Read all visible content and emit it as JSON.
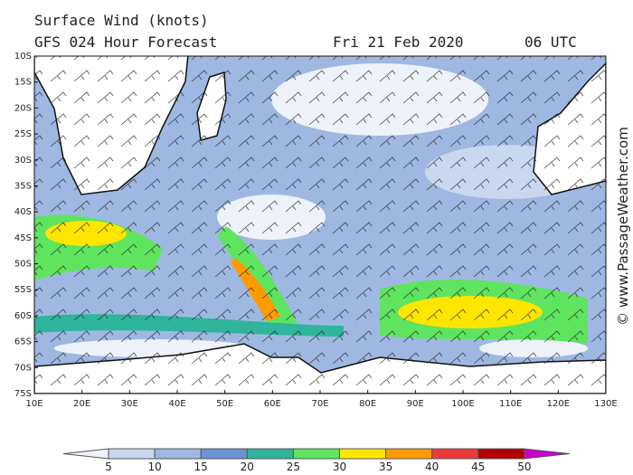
{
  "header": {
    "title": "Surface Wind (knots)",
    "model": "GFS 024 Hour Forecast",
    "date": "Fri 21 Feb 2020",
    "time": "06 UTC"
  },
  "map": {
    "lat_labels": [
      "10S",
      "15S",
      "20S",
      "25S",
      "30S",
      "35S",
      "40S",
      "45S",
      "50S",
      "55S",
      "60S",
      "65S",
      "70S",
      "75S"
    ],
    "lon_labels": [
      "10E",
      "20E",
      "30E",
      "40E",
      "50E",
      "60E",
      "70E",
      "80E",
      "90E",
      "100E",
      "110E",
      "120E",
      "130E"
    ]
  },
  "colorbar": {
    "labels": [
      "5",
      "10",
      "15",
      "20",
      "25",
      "30",
      "35",
      "40",
      "45",
      "50"
    ],
    "colors": [
      "#eef2fa",
      "#c9d8ef",
      "#9fb8e2",
      "#6d91d2",
      "#2fb59b",
      "#5fe45f",
      "#ffe600",
      "#ff9b00",
      "#ec3a3a",
      "#b40000",
      "#cc00cc"
    ]
  },
  "watermark": "© www.PassageWeather.com"
}
